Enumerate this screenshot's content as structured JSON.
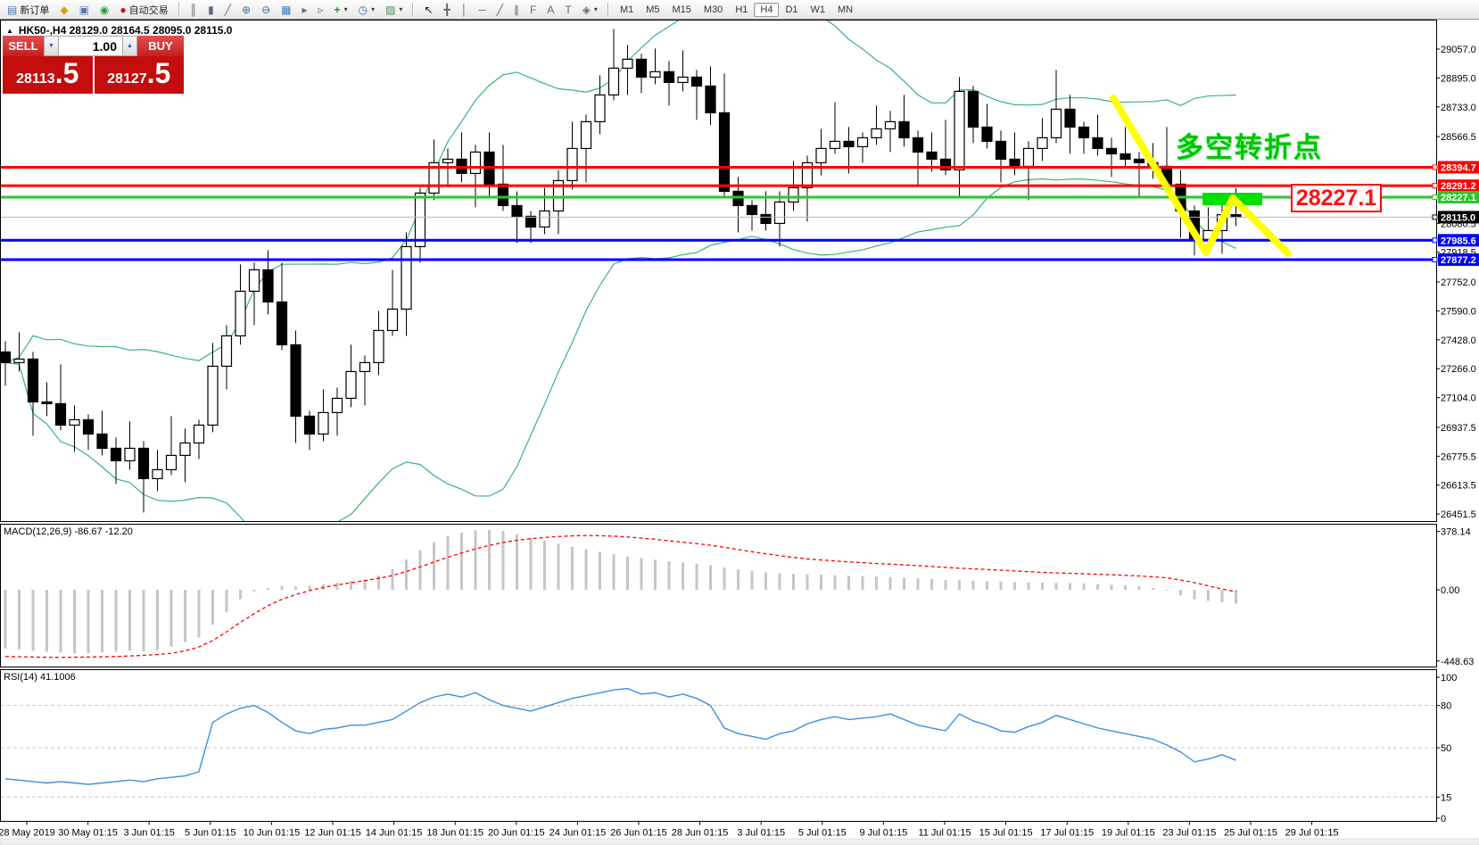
{
  "toolbar": {
    "new_order": "新订单",
    "auto_trading": "自动交易",
    "timeframes": [
      "M1",
      "M5",
      "M15",
      "M30",
      "H1",
      "H4",
      "D1",
      "W1",
      "MN"
    ],
    "active_timeframe": "H4",
    "icons": {
      "new_order": "▤",
      "profiles": "◆",
      "market_watch": "▣",
      "navigator": "◉",
      "auto_trading": "●",
      "bar_chart": "║",
      "candle_chart": "▮",
      "line_chart": "╱",
      "zoom_in": "⊕",
      "zoom_out": "⊖",
      "tile_windows": "▦",
      "auto_scroll": "▸",
      "chart_shift": "▹",
      "add_indicator": "+",
      "periods": "◷",
      "templates": "▨",
      "cursor": "↖",
      "crosshair": "╋",
      "vline": "│",
      "hline": "─",
      "trendline": "╱",
      "channel": "∥",
      "fibonacci": "F",
      "text": "A",
      "label": "T",
      "shapes": "◈",
      "dropdown": "▾"
    }
  },
  "symbol_header": {
    "collapse_icon": "▲",
    "text": "HK50-,H4  28129.0 28164.5 28095.0 28115.0"
  },
  "trade_panel": {
    "sell": "SELL",
    "buy": "BUY",
    "volume": "1.00",
    "spin_down": "▼",
    "spin_up": "▲",
    "sell_price": {
      "main": "28113",
      "big": ".5"
    },
    "buy_price": {
      "main": "28127",
      "big": ".5"
    }
  },
  "annotations": {
    "turning_point": "多空转折点",
    "price_box": "28227.1",
    "colors": {
      "yellow_line": "#ffff00",
      "green_rect": "#00e000",
      "note_green": "#00c400",
      "box_red": "#ff0000"
    }
  },
  "indicators": {
    "macd_label": "MACD(12,26,9) -86.67 -12.20",
    "rsi_label": "RSI(14) 41.1006"
  },
  "axes": {
    "price_ticks": [
      {
        "label": "29057.0",
        "value": 29057.0
      },
      {
        "label": "28895.0",
        "value": 28895.0
      },
      {
        "label": "28733.0",
        "value": 28733.0
      },
      {
        "label": "28566.5",
        "value": 28566.5
      },
      {
        "label": "28080.5",
        "value": 28080.5
      },
      {
        "label": "27918.5",
        "value": 27918.5
      },
      {
        "label": "27752.0",
        "value": 27752.0
      },
      {
        "label": "27590.0",
        "value": 27590.0
      },
      {
        "label": "27428.0",
        "value": 27428.0
      },
      {
        "label": "27266.0",
        "value": 27266.0
      },
      {
        "label": "27104.0",
        "value": 27104.0
      },
      {
        "label": "26937.5",
        "value": 26937.5
      },
      {
        "label": "26775.5",
        "value": 26775.5
      },
      {
        "label": "26613.5",
        "value": 26613.5
      },
      {
        "label": "26451.5",
        "value": 26451.5
      }
    ],
    "line_labels": [
      {
        "label": "28394.7",
        "value": 28394.7,
        "color": "#ff0000",
        "line": true,
        "width": 3
      },
      {
        "label": "28291.2",
        "value": 28291.2,
        "color": "#ff0000",
        "line": true,
        "width": 3
      },
      {
        "label": "28227.1",
        "value": 28227.1,
        "color": "#2ec62e",
        "line": true,
        "width": 3
      },
      {
        "label": "28115.0",
        "value": 28115.0,
        "color": "#000000",
        "line": false,
        "width": 1
      },
      {
        "label": "27985.6",
        "value": 27985.6,
        "color": "#0000ff",
        "line": true,
        "width": 3
      },
      {
        "label": "27877.2",
        "value": 27877.2,
        "color": "#0000ff",
        "line": true,
        "width": 3
      }
    ],
    "macd_ticks": [
      {
        "label": "378.14",
        "value": 378.14
      },
      {
        "label": "0.00",
        "value": 0
      },
      {
        "label": "-448.63",
        "value": -448.63
      }
    ],
    "rsi_ticks": [
      {
        "label": "100",
        "value": 100
      },
      {
        "label": "80",
        "value": 80
      },
      {
        "label": "50",
        "value": 50
      },
      {
        "label": "15",
        "value": 15
      },
      {
        "label": "0",
        "value": 0
      }
    ],
    "time_labels": [
      "28 May 2019",
      "30 May 01:15",
      "3 Jun 01:15",
      "5 Jun 01:15",
      "10 Jun 01:15",
      "12 Jun 01:15",
      "14 Jun 01:15",
      "18 Jun 01:15",
      "20 Jun 01:15",
      "24 Jun 01:15",
      "26 Jun 01:15",
      "28 Jun 01:15",
      "3 Jul 01:15",
      "5 Jul 01:15",
      "9 Jul 01:15",
      "11 Jul 01:15",
      "15 Jul 01:15",
      "17 Jul 01:15",
      "19 Jul 01:15",
      "23 Jul 01:15",
      "25 Jul 01:15",
      "29 Jul 01:15"
    ]
  },
  "chart_data": {
    "type": "candlestick",
    "symbol": "HK50-",
    "timeframe": "H4",
    "current_ohlc": {
      "open": 28129.0,
      "high": 28164.5,
      "low": 28095.0,
      "close": 28115.0
    },
    "levels": {
      "red": [
        28394.7,
        28291.2
      ],
      "green": [
        28227.1
      ],
      "blue": [
        27985.6,
        27877.2
      ],
      "current": 28115.0
    },
    "closes": [
      27300,
      27320,
      27080,
      27070,
      26950,
      26980,
      26900,
      26820,
      26750,
      26820,
      26650,
      26700,
      26780,
      26850,
      26950,
      27280,
      27450,
      27700,
      27820,
      27640,
      27400,
      27000,
      26900,
      27020,
      27100,
      27250,
      27300,
      27480,
      27600,
      27950,
      28250,
      28420,
      28440,
      28360,
      28480,
      28300,
      28180,
      28120,
      28060,
      28150,
      28320,
      28500,
      28650,
      28800,
      28950,
      29000,
      28900,
      28930,
      28870,
      28900,
      28850,
      28700,
      28260,
      28180,
      28130,
      28080,
      28200,
      28280,
      28420,
      28500,
      28540,
      28510,
      28560,
      28610,
      28650,
      28560,
      28480,
      28440,
      28380,
      28820,
      28620,
      28540,
      28440,
      28400,
      28500,
      28560,
      28720,
      28620,
      28560,
      28500,
      28470,
      28440,
      28420,
      28400,
      28300,
      28150,
      27990,
      28040,
      28129,
      28115
    ],
    "macd_histogram": [
      -370,
      -375,
      -385,
      -390,
      -395,
      -400,
      -398,
      -395,
      -390,
      -385,
      -390,
      -380,
      -360,
      -330,
      -300,
      -220,
      -140,
      -60,
      -10,
      10,
      25,
      20,
      25,
      35,
      45,
      55,
      65,
      90,
      130,
      190,
      250,
      300,
      340,
      360,
      375,
      378,
      370,
      350,
      330,
      310,
      290,
      270,
      255,
      240,
      225,
      210,
      200,
      190,
      180,
      172,
      165,
      155,
      140,
      128,
      118,
      110,
      105,
      100,
      98,
      95,
      92,
      88,
      85,
      82,
      80,
      76,
      72,
      68,
      62,
      60,
      58,
      55,
      52,
      48,
      46,
      45,
      44,
      42,
      40,
      36,
      32,
      28,
      22,
      12,
      -5,
      -35,
      -60,
      -70,
      -78,
      -87
    ],
    "macd_signal": [
      -420,
      -422,
      -424,
      -425,
      -426,
      -425,
      -424,
      -422,
      -420,
      -417,
      -413,
      -408,
      -400,
      -385,
      -360,
      -320,
      -265,
      -205,
      -150,
      -100,
      -60,
      -30,
      -5,
      15,
      30,
      45,
      58,
      72,
      90,
      115,
      145,
      175,
      205,
      232,
      258,
      280,
      298,
      312,
      322,
      330,
      336,
      340,
      342,
      341,
      338,
      333,
      326,
      318,
      309,
      300,
      291,
      281,
      268,
      254,
      240,
      227,
      215,
      204,
      195,
      188,
      182,
      176,
      171,
      166,
      162,
      157,
      152,
      147,
      141,
      136,
      132,
      128,
      124,
      119,
      114,
      110,
      107,
      104,
      101,
      98,
      95,
      91,
      87,
      82,
      75,
      62,
      45,
      25,
      5,
      -12
    ],
    "rsi_values": [
      28,
      27,
      26,
      25,
      26,
      25,
      24,
      25,
      26,
      27,
      26,
      28,
      29,
      30,
      33,
      68,
      74,
      78,
      80,
      75,
      68,
      62,
      60,
      63,
      64,
      66,
      66,
      68,
      70,
      76,
      82,
      86,
      88,
      86,
      89,
      84,
      80,
      78,
      76,
      79,
      82,
      85,
      87,
      89,
      91,
      92,
      88,
      89,
      86,
      88,
      85,
      80,
      64,
      60,
      58,
      56,
      60,
      62,
      67,
      70,
      72,
      70,
      71,
      72,
      74,
      70,
      66,
      64,
      62,
      74,
      69,
      66,
      62,
      61,
      65,
      68,
      73,
      70,
      67,
      64,
      62,
      60,
      58,
      56,
      52,
      47,
      40,
      42,
      45,
      41.1
    ],
    "rsi_levels": [
      80,
      50,
      15
    ],
    "style": {
      "band_color": "#3cb371",
      "macd_bar_color": "#c6c6c6",
      "macd_signal_color": "#ff0000",
      "rsi_color": "#3e8ede",
      "bull": "#ffffff",
      "bear": "#000000"
    }
  }
}
